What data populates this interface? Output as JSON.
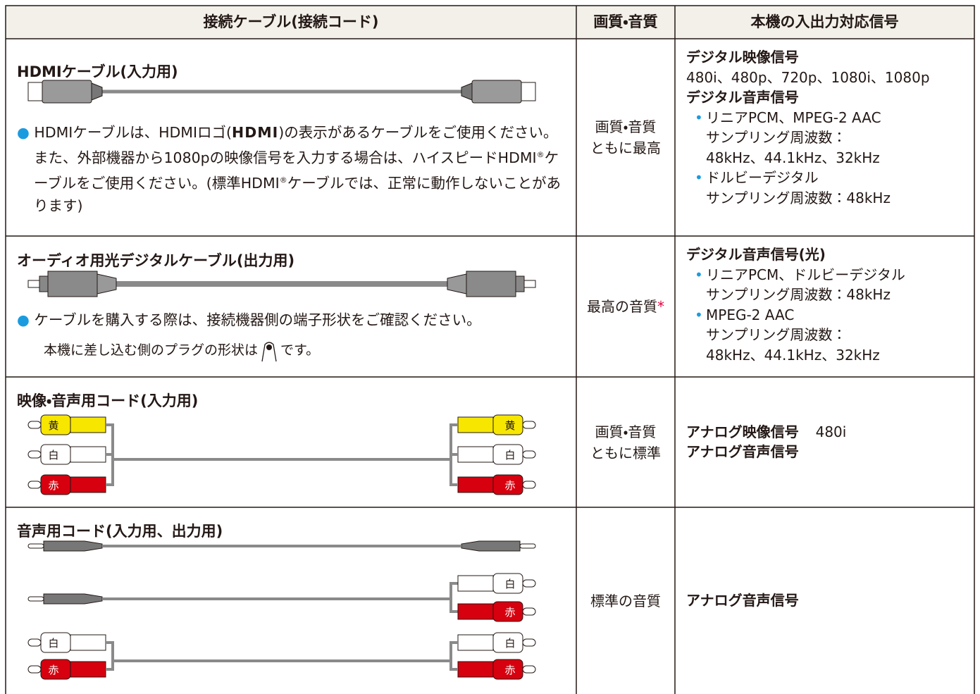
{
  "table": {
    "headers": [
      "接続ケーブル(接続コード)",
      "画質・音質",
      "本機の入出力対応信号"
    ],
    "plug_labels": {
      "yellow": "黄",
      "white": "白",
      "red": "赤"
    },
    "rows": [
      {
        "cable": "HDMIケーブル(入力用)",
        "note": [
          {
            "text": "HDMIケーブルは、HDMIロゴ("
          },
          {
            "text": "HDMI",
            "logo": true
          },
          {
            "text": ")の表示があるケーブルをご使用ください。また、外部機器から1080pの映像信号を入力する場合は、ハイスピードHDMI"
          },
          {
            "text": "®",
            "sup": true
          },
          {
            "text": "ケーブルをご使用ください。(標準HDMI"
          },
          {
            "text": "®",
            "sup": true
          },
          {
            "text": "ケーブルでは、正常に動作しないことがあります)"
          }
        ],
        "quality": [
          "画質・音質",
          "ともに最高"
        ],
        "signals": [
          {
            "heading": "デジタル映像信号",
            "lines": [
              "480i、480p、720p、1080i、1080p"
            ]
          },
          {
            "heading": "デジタル音声信号",
            "bullets": [
              [
                "リニアPCM、MPEG-2 AAC",
                "サンプリング周波数：",
                "48kHz、44.1kHz、32kHz"
              ],
              [
                "ドルビーデジタル",
                "サンプリング周波数：48kHz"
              ]
            ]
          }
        ]
      },
      {
        "cable": "オーディオ用光デジタルケーブル(出力用)",
        "note": [
          {
            "text": "ケーブルを購入する際は、接続機器側の端子形状をご確認ください。"
          }
        ],
        "subnote": [
          "本機に差し込む側のプラグの形状は",
          "です。"
        ],
        "quality": [
          "最高の音質"
        ],
        "quality_mark": "*",
        "signals": [
          {
            "heading": "デジタル音声信号(光)",
            "bullets": [
              [
                "リニアPCM、ドルビーデジタル",
                "サンプリング周波数：48kHz"
              ],
              [
                "MPEG-2 AAC",
                "サンプリング周波数：",
                "48kHz、44.1kHz、32kHz"
              ]
            ]
          }
        ]
      },
      {
        "cable": "映像・音声用コード(入力用)",
        "quality": [
          "画質・音質",
          "ともに標準"
        ],
        "signals": [
          {
            "heading": "アナログ映像信号",
            "value": "480i"
          },
          {
            "heading": "アナログ音声信号"
          }
        ]
      },
      {
        "cable": "音声用コード(入力用、出力用)",
        "quality": [
          "標準の音質"
        ],
        "signals": [
          {
            "heading": "アナログ音声信号"
          }
        ]
      }
    ]
  }
}
